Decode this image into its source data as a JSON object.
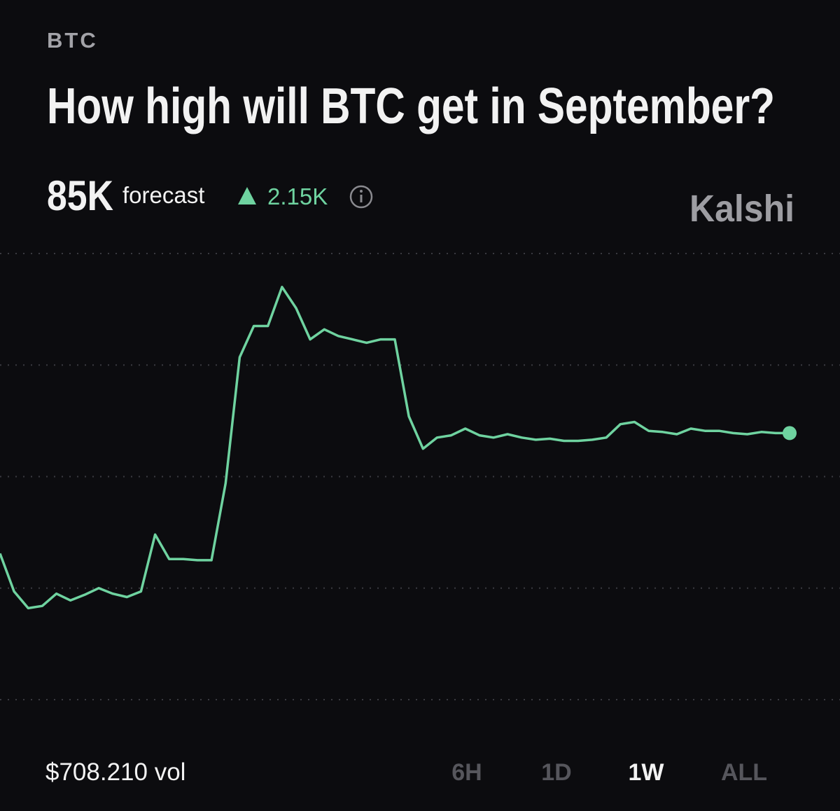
{
  "header": {
    "category": "BTC",
    "title": "How high will BTC get in September?"
  },
  "forecast": {
    "value": "85K",
    "label": "forecast",
    "change": "2.15K"
  },
  "brand": "Kalshi",
  "chart_data": {
    "type": "line",
    "color": "#6fd3a0",
    "values": [
      1.31,
      0.97,
      0.82,
      0.84,
      0.95,
      0.89,
      0.94,
      1.0,
      0.95,
      0.92,
      0.97,
      1.48,
      1.26,
      1.26,
      1.25,
      1.25,
      1.94,
      3.07,
      3.35,
      3.35,
      3.7,
      3.51,
      3.23,
      3.32,
      3.26,
      3.23,
      3.2,
      3.23,
      3.23,
      2.54,
      2.25,
      2.35,
      2.37,
      2.43,
      2.37,
      2.35,
      2.38,
      2.35,
      2.33,
      2.34,
      2.32,
      2.32,
      2.33,
      2.35,
      2.47,
      2.49,
      2.41,
      2.4,
      2.38,
      2.43,
      2.41,
      2.41,
      2.39,
      2.38,
      2.4,
      2.39,
      2.39
    ],
    "ylim": [
      0,
      4
    ],
    "grid_lines": [
      0,
      1,
      2,
      3,
      4
    ],
    "grid": true
  },
  "footer": {
    "volume": "$708.210 vol",
    "ranges": [
      "6H",
      "1D",
      "1W",
      "ALL"
    ],
    "selected": "1W"
  }
}
